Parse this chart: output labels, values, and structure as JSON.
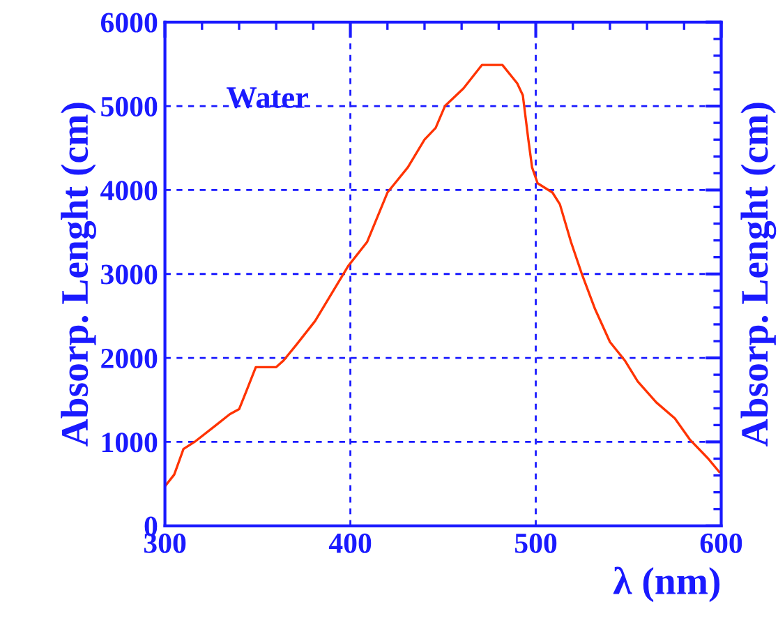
{
  "chart_data": {
    "type": "line",
    "xlabel": "λ (nm)",
    "ylabel": "Absorp. Lenght (cm)",
    "y2label": "Absorp. Lenght (cm)",
    "annotations": [
      "Water"
    ],
    "x": [
      300,
      305,
      310,
      316,
      327,
      335,
      340,
      344,
      349,
      360,
      364,
      371,
      381,
      390,
      399,
      409,
      420,
      431,
      440,
      446,
      451,
      461,
      471,
      482,
      490,
      493,
      496,
      498,
      501,
      509,
      513,
      519,
      525,
      532,
      540,
      548,
      555,
      565,
      575,
      583,
      593,
      599
    ],
    "series": [
      {
        "color": "#ff3300",
        "values": [
          470,
          610,
          915,
          1000,
          1190,
          1330,
          1390,
          1610,
          1890,
          1890,
          1970,
          2160,
          2440,
          2770,
          3100,
          3380,
          3970,
          4270,
          4600,
          4740,
          5000,
          5210,
          5490,
          5490,
          5270,
          5130,
          4600,
          4270,
          4080,
          3970,
          3830,
          3380,
          2990,
          2580,
          2190,
          1970,
          1720,
          1470,
          1280,
          1030,
          800,
          640
        ]
      }
    ],
    "xlim": [
      300,
      600
    ],
    "xticks": [
      300,
      400,
      500,
      600
    ],
    "ylim": [
      0,
      6000
    ],
    "yticks": [
      0,
      1000,
      2000,
      3000,
      4000,
      5000,
      6000
    ],
    "grid": true,
    "line_style": "solid",
    "marker": "none"
  }
}
